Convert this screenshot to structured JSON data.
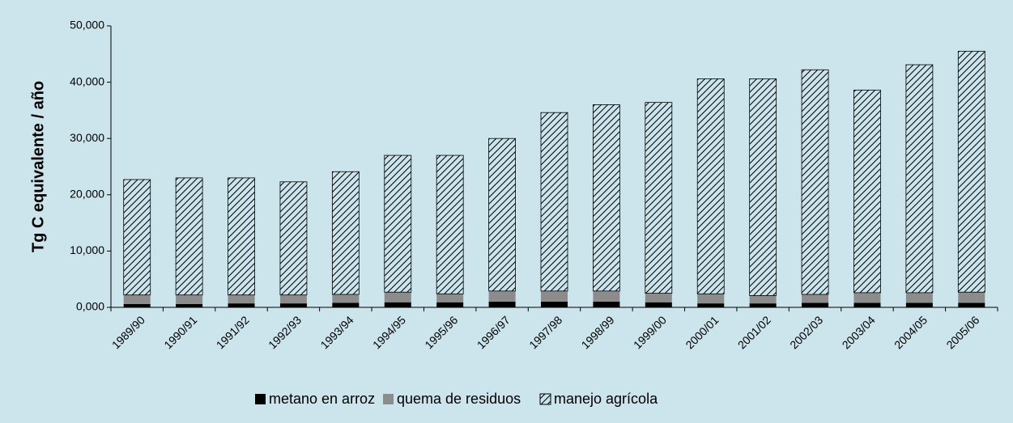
{
  "chart_data": {
    "type": "stacked-bar",
    "y_label": "Tg C equivalente / año",
    "categories": [
      "1989/90",
      "1990/91",
      "1991/92",
      "1992/93",
      "1993/94",
      "1994/95",
      "1995/96",
      "1996/97",
      "1997/98",
      "1998/99",
      "1999/00",
      "2000/01",
      "2001/02",
      "2002/03",
      "2003/04",
      "2004/05",
      "2005/06"
    ],
    "series": [
      {
        "name": "metano en arroz",
        "color": "#000000",
        "values": [
          600,
          600,
          700,
          700,
          800,
          900,
          900,
          1000,
          1000,
          1000,
          900,
          700,
          700,
          800,
          800,
          800,
          800
        ]
      },
      {
        "name": "quema de residuos",
        "color": "#8c8c8c",
        "values": [
          1600,
          1600,
          1500,
          1500,
          1500,
          1800,
          1500,
          1900,
          1900,
          1900,
          1600,
          1700,
          1400,
          1500,
          1800,
          1800,
          1900
        ]
      },
      {
        "name": "manejo agrícola",
        "color": "#000000",
        "pattern": "hatch",
        "values": [
          20500,
          20800,
          20800,
          20100,
          21800,
          24300,
          24600,
          27100,
          31700,
          33100,
          33900,
          38200,
          38500,
          39900,
          36000,
          40500,
          42800
        ]
      }
    ],
    "ylim": [
      0,
      50000
    ],
    "yticks": [
      {
        "value": 0,
        "label": "0,000"
      },
      {
        "value": 10000,
        "label": "10,000"
      },
      {
        "value": 20000,
        "label": "20,000"
      },
      {
        "value": 30000,
        "label": "30,000"
      },
      {
        "value": 40000,
        "label": "40,000"
      },
      {
        "value": 50000,
        "label": "50,000"
      }
    ],
    "legend": "bottom"
  }
}
